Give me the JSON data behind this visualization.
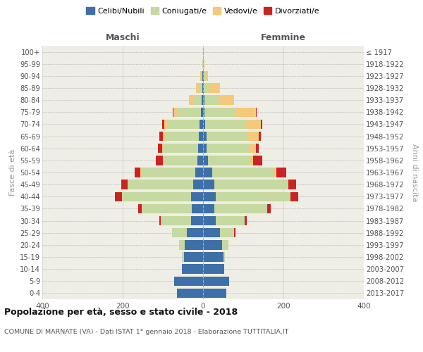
{
  "age_groups": [
    "0-4",
    "5-9",
    "10-14",
    "15-19",
    "20-24",
    "25-29",
    "30-34",
    "35-39",
    "40-44",
    "45-49",
    "50-54",
    "55-59",
    "60-64",
    "65-69",
    "70-74",
    "75-79",
    "80-84",
    "85-89",
    "90-94",
    "95-99",
    "100+"
  ],
  "birth_years": [
    "2013-2017",
    "2008-2012",
    "2003-2007",
    "1998-2002",
    "1993-1997",
    "1988-1992",
    "1983-1987",
    "1978-1982",
    "1973-1977",
    "1968-1972",
    "1963-1967",
    "1958-1962",
    "1953-1957",
    "1948-1952",
    "1943-1947",
    "1938-1942",
    "1933-1937",
    "1928-1932",
    "1923-1927",
    "1918-1922",
    "≤ 1917"
  ],
  "colors": {
    "celibi": "#3d6fa8",
    "coniugati": "#c5d9a0",
    "vedovi": "#f5c97a",
    "divorziati": "#cc2222",
    "bg": "#eeeee6"
  },
  "maschi": {
    "celibi": [
      65,
      72,
      52,
      48,
      45,
      40,
      30,
      28,
      30,
      25,
      20,
      14,
      12,
      10,
      8,
      5,
      3,
      2,
      1,
      0,
      0
    ],
    "coniugati": [
      0,
      0,
      0,
      4,
      14,
      38,
      75,
      125,
      172,
      162,
      135,
      85,
      88,
      85,
      80,
      58,
      22,
      8,
      3,
      1,
      0
    ],
    "vedovi": [
      0,
      0,
      0,
      0,
      0,
      0,
      0,
      0,
      0,
      1,
      1,
      1,
      2,
      5,
      8,
      10,
      10,
      8,
      3,
      1,
      0
    ],
    "divorziati": [
      0,
      0,
      0,
      0,
      0,
      0,
      4,
      8,
      18,
      16,
      14,
      18,
      10,
      8,
      5,
      3,
      0,
      0,
      0,
      0,
      0
    ]
  },
  "femmine": {
    "celibi": [
      58,
      65,
      52,
      50,
      48,
      42,
      32,
      28,
      32,
      28,
      22,
      12,
      9,
      8,
      6,
      4,
      3,
      2,
      1,
      0,
      0
    ],
    "coniugati": [
      0,
      0,
      0,
      4,
      16,
      36,
      72,
      132,
      185,
      180,
      155,
      105,
      105,
      105,
      100,
      75,
      35,
      12,
      4,
      1,
      0
    ],
    "vedovi": [
      0,
      0,
      0,
      0,
      0,
      0,
      0,
      0,
      1,
      4,
      6,
      8,
      18,
      26,
      38,
      52,
      40,
      28,
      8,
      2,
      1
    ],
    "divorziati": [
      0,
      0,
      0,
      0,
      0,
      2,
      4,
      8,
      18,
      20,
      24,
      22,
      7,
      4,
      4,
      2,
      0,
      0,
      0,
      0,
      0
    ]
  },
  "title": "Popolazione per età, sesso e stato civile - 2018",
  "subtitle": "COMUNE DI MARNATE (VA) - Dati ISTAT 1° gennaio 2018 - Elaborazione TUTTITALIA.IT",
  "ylabel_left": "Fasce di età",
  "ylabel_right": "Anni di nascita",
  "xlabel_left": "Maschi",
  "xlabel_right": "Femmine",
  "xlim": 400,
  "legend_labels": [
    "Celibi/Nubili",
    "Coniugati/e",
    "Vedovi/e",
    "Divorziati/e"
  ]
}
